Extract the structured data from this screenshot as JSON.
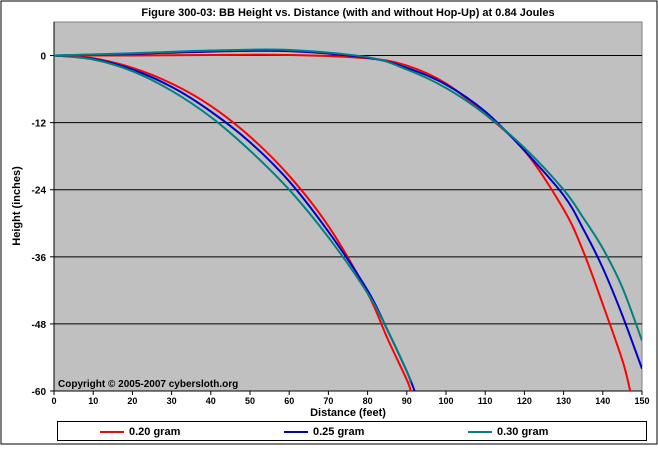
{
  "chart_data": {
    "type": "line",
    "title": "Figure 300-03:  BB Height vs. Distance (with and without Hop-Up) at 0.84 Joules",
    "xlabel": "Distance (feet)",
    "ylabel": "Height (inches)",
    "xlim": [
      0,
      150
    ],
    "ylim": [
      -60,
      6
    ],
    "xticks": [
      0,
      10,
      20,
      30,
      40,
      50,
      60,
      70,
      80,
      90,
      100,
      110,
      120,
      130,
      140,
      150
    ],
    "yticks": [
      0,
      -12,
      -24,
      -36,
      -48,
      -60
    ],
    "grid": "horizontal",
    "plot_background": "#C0C0C0",
    "annotation": "Copyright © 2005-2007 cybersloth.org",
    "legend_position": "bottom",
    "series": [
      {
        "name": "0.20 gram",
        "group": "without hop-up",
        "color": "#FF0000",
        "x": [
          0,
          10,
          20,
          30,
          40,
          50,
          60,
          70,
          80,
          85,
          90,
          91
        ],
        "y": [
          0,
          -0.5,
          -2.2,
          -5.0,
          -9.0,
          -14.5,
          -21.5,
          -30.5,
          -42.5,
          -50.5,
          -58.0,
          -60
        ]
      },
      {
        "name": "0.25 gram",
        "group": "without hop-up",
        "color": "#0000CC",
        "x": [
          0,
          10,
          20,
          30,
          40,
          50,
          60,
          70,
          80,
          85,
          90,
          92
        ],
        "y": [
          0,
          -0.6,
          -2.5,
          -5.6,
          -10.0,
          -15.5,
          -22.5,
          -31.5,
          -42.0,
          -49.0,
          -56.5,
          -60
        ]
      },
      {
        "name": "0.30 gram",
        "group": "without hop-up",
        "color": "#008080",
        "x": [
          0,
          10,
          20,
          30,
          40,
          50,
          60,
          70,
          80,
          85,
          90,
          91
        ],
        "y": [
          0,
          -0.7,
          -2.8,
          -6.3,
          -11.0,
          -17.0,
          -24.0,
          -32.5,
          -42.5,
          -49.0,
          -56.5,
          -58.5
        ]
      },
      {
        "name": "0.20 gram",
        "group": "with hop-up",
        "color": "#FF0000",
        "x": [
          0,
          20,
          40,
          60,
          80,
          90,
          100,
          110,
          120,
          130,
          135,
          140,
          145,
          147
        ],
        "y": [
          0,
          0,
          0.1,
          0.1,
          -0.5,
          -1.8,
          -5.0,
          -10.5,
          -17.0,
          -27.5,
          -35.0,
          -44.5,
          -54.5,
          -60
        ]
      },
      {
        "name": "0.25 gram",
        "group": "with hop-up",
        "color": "#0000CC",
        "x": [
          0,
          20,
          40,
          60,
          80,
          90,
          100,
          110,
          120,
          130,
          135,
          140,
          145,
          150
        ],
        "y": [
          0,
          0.3,
          0.7,
          0.8,
          -0.4,
          -2.2,
          -5.2,
          -10.0,
          -17.0,
          -25.0,
          -31.0,
          -38.0,
          -46.5,
          -56.0
        ]
      },
      {
        "name": "0.30 gram",
        "group": "with hop-up",
        "color": "#008080",
        "x": [
          0,
          20,
          40,
          60,
          80,
          90,
          100,
          110,
          120,
          130,
          135,
          140,
          145,
          150
        ],
        "y": [
          0,
          0.4,
          0.9,
          1.0,
          -0.3,
          -2.5,
          -5.8,
          -10.5,
          -16.5,
          -24.0,
          -29.0,
          -34.5,
          -41.5,
          -51.0
        ]
      }
    ]
  }
}
